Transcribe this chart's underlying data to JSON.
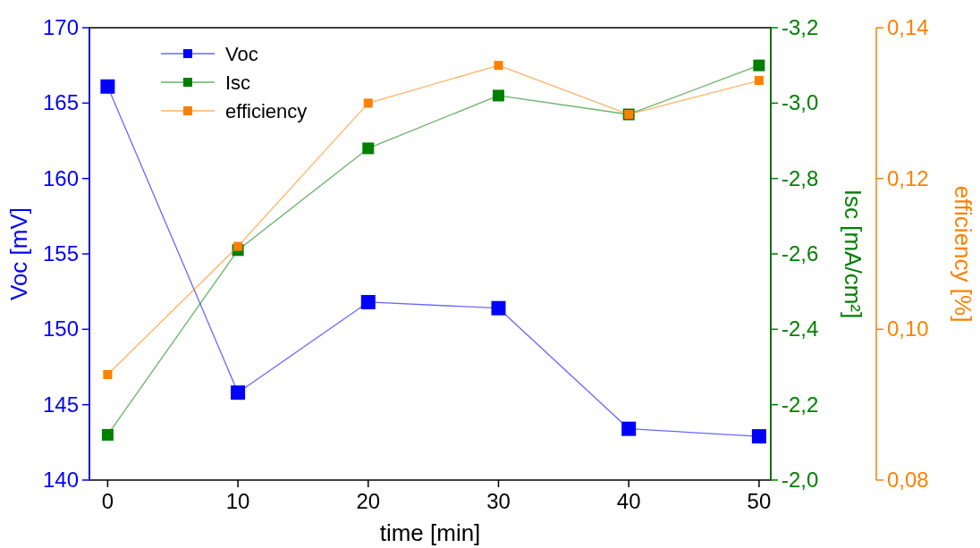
{
  "chart_data": {
    "type": "line",
    "xlabel": "time [min]",
    "ylabel": "Voc [mV]",
    "y2label": "Isc [mA/cm²]",
    "y3label": "efficiency [%]",
    "x": [
      0,
      10,
      20,
      30,
      40,
      50
    ],
    "xlim": [
      -1.4,
      50.9
    ],
    "xticks": [
      0,
      10,
      20,
      30,
      40,
      50
    ],
    "ylim": [
      140,
      170
    ],
    "yticks": [
      140,
      145,
      150,
      155,
      160,
      165,
      170
    ],
    "y2lim": [
      -2.0,
      -3.2
    ],
    "y2ticks": [
      {
        "value": -2.0,
        "label": "-2,0"
      },
      {
        "value": -2.2,
        "label": "-2,2"
      },
      {
        "value": -2.4,
        "label": "-2,4"
      },
      {
        "value": -2.6,
        "label": "-2,6"
      },
      {
        "value": -2.8,
        "label": "-2,8"
      },
      {
        "value": -3.0,
        "label": "-3,0"
      },
      {
        "value": -3.2,
        "label": "-3,2"
      }
    ],
    "y3lim": [
      0.08,
      0.14
    ],
    "y3ticks": [
      {
        "value": 0.08,
        "label": "0,08"
      },
      {
        "value": 0.1,
        "label": "0,10"
      },
      {
        "value": 0.12,
        "label": "0,12"
      },
      {
        "value": 0.14,
        "label": "0,14"
      }
    ],
    "marker": "square",
    "legend": "top left",
    "grid": false,
    "series": [
      {
        "name": "Voc",
        "color": "#0000ff",
        "values": [
          166.1,
          145.8,
          151.8,
          151.4,
          143.4,
          142.9
        ]
      },
      {
        "name": "Isc",
        "color": "#007f00",
        "axis": "y2",
        "values": [
          -2.12,
          -2.61,
          -2.88,
          -3.02,
          -2.97,
          -3.1
        ]
      },
      {
        "name": "efficiency",
        "color": "#ff8000",
        "axis": "y3",
        "values": [
          0.094,
          0.111,
          0.13,
          0.135,
          0.1285,
          0.133
        ]
      }
    ]
  }
}
